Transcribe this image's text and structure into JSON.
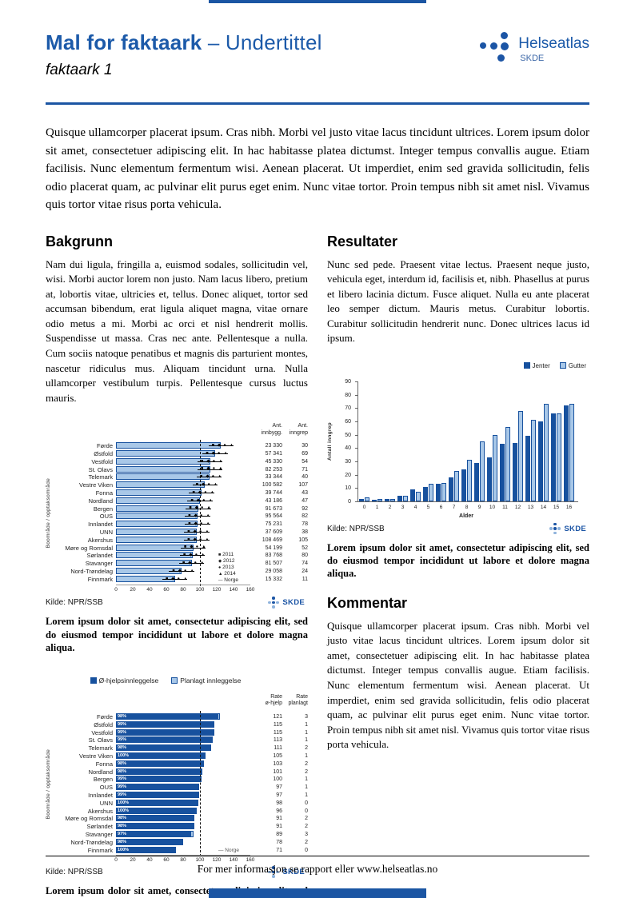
{
  "accent_color": "#1B55A3",
  "bar_dark_color": "#17519E",
  "bar_light_color": "#A9C8E8",
  "header": {
    "title_bold": "Mal for faktaark",
    "title_rest": "– Undertittel",
    "subtitle": "faktaark 1",
    "logo_name": "Helseatlas",
    "logo_sub": "SKDE"
  },
  "logos": {
    "chart_logo_text": "SKDE"
  },
  "intro": "Quisque ullamcorper placerat ipsum. Cras nibh. Morbi vel justo vitae lacus tincidunt ultrices. Lorem ipsum dolor sit amet, consectetuer adipiscing elit. In hac habitasse platea dictumst. Integer tempus convallis augue. Etiam facilisis. Nunc elementum fermentum wisi. Aenean placerat. Ut imperdiet, enim sed gravida sollicitudin, felis odio placerat quam, ac pulvinar elit purus eget enim. Nunc vitae tortor. Proin tempus nibh sit amet nisl. Vivamus quis tortor vitae risus porta vehicula.",
  "sections": {
    "bakgrunn": {
      "heading": "Bakgrunn",
      "body": "Nam dui ligula, fringilla a, euismod sodales, sollicitudin vel, wisi. Morbi auctor lorem non justo. Nam lacus libero, pretium at, lobortis vitae, ultricies et, tellus. Donec aliquet, tortor sed accumsan bibendum, erat ligula aliquet magna, vitae ornare odio metus a mi. Morbi ac orci et nisl hendrerit mollis. Suspendisse ut massa. Cras nec ante. Pellentesque a nulla. Cum sociis natoque penatibus et magnis dis parturient montes, nascetur ridiculus mus. Aliquam tincidunt urna. Nulla ullamcorper vestibulum turpis. Pellentesque cursus luctus mauris."
    },
    "resultater": {
      "heading": "Resultater",
      "body": "Nunc sed pede. Praesent vitae lectus. Praesent neque justo, vehicula eget, interdum id, facilisis et, nibh. Phasellus at purus et libero lacinia dictum. Fusce aliquet. Nulla eu ante placerat leo semper dictum. Mauris metus. Curabitur lobortis. Curabitur sollicitudin hendrerit nunc. Donec ultrices lacus id ipsum."
    },
    "kommentar": {
      "heading": "Kommentar",
      "body": "Quisque ullamcorper placerat ipsum. Cras nibh. Morbi vel justo vitae lacus tincidunt ultrices. Lorem ipsum dolor sit amet, consectetuer adipiscing elit. In hac habitasse platea dictumst. Integer tempus convallis augue. Etiam facilisis. Nunc elementum fermentum wisi. Aenean placerat. Ut imperdiet, enim sed gravida sollicitudin, felis odio placerat quam, ac pulvinar elit purus eget enim. Nunc vitae tortor. Proin tempus nibh sit amet nisl. Vivamus quis tortor vitae risus porta vehicula."
    }
  },
  "captions": {
    "chart1": "Lorem ipsum dolor sit amet, consectetur adipiscing elit, sed do eiusmod tempor incididunt ut labore et dolore magna aliqua.",
    "chart2": "Lorem ipsum dolor sit amet, consectetur adipiscing elit, sed do eiusmod tempor incididunt ut labore et dolore magna aliqua.",
    "chart3": "Lorem ipsum dolor sit amet, consectetur adipiscing elit, sed do eiusmod tempor incididunt ut labore et dolore magna aliqua."
  },
  "footer": {
    "text": "For mer informasjon se rapport eller www.helseatlas.no"
  },
  "chart_data": [
    {
      "type": "bar",
      "orientation": "horizontal",
      "ylabel": "Boområde / opptaksområde",
      "categories": [
        "Førde",
        "Østfold",
        "Vestfold",
        "St. Olavs",
        "Telemark",
        "Vestre Viken",
        "Fonna",
        "Nordland",
        "Bergen",
        "OUS",
        "Innlandet",
        "UNN",
        "Akershus",
        "Møre og Romsdal",
        "Sørlandet",
        "Stavanger",
        "Nord-Trøndelag",
        "Finnmark"
      ],
      "values": [
        125,
        118,
        112,
        112,
        111,
        106,
        102,
        100,
        98,
        97,
        97,
        96,
        96,
        92,
        91,
        90,
        78,
        70
      ],
      "xlim": [
        0,
        160
      ],
      "xticks": [
        0,
        20,
        40,
        60,
        80,
        100,
        120,
        140,
        160
      ],
      "reference_line": {
        "label": "Norge",
        "value": 100
      },
      "columns": [
        {
          "header": "Ant. innbygg.",
          "values": [
            "23 330",
            "57 341",
            "45 330",
            "82 253",
            "33 344",
            "100 582",
            "39 744",
            "43 186",
            "91 673",
            "95 564",
            "75 231",
            "37 609",
            "108 469",
            "54 199",
            "83 768",
            "81 507",
            "29 058",
            "15 332"
          ]
        },
        {
          "header": "Ant. inngrep",
          "values": [
            "30",
            "69",
            "54",
            "71",
            "40",
            "107",
            "43",
            "47",
            "92",
            "82",
            "78",
            "38",
            "105",
            "52",
            "80",
            "74",
            "24",
            "11"
          ]
        }
      ],
      "legend": [
        {
          "label": "2011",
          "marker": "square"
        },
        {
          "label": "2012",
          "marker": "diamond"
        },
        {
          "label": "2013",
          "marker": "circle"
        },
        {
          "label": "2014",
          "marker": "triangle"
        },
        {
          "label": "Norge",
          "marker": "dash"
        }
      ],
      "source": "Kilde: NPR/SSB"
    },
    {
      "type": "bar",
      "orientation": "horizontal",
      "ylabel": "Boområde / opptaksområde",
      "categories": [
        "Førde",
        "Østfold",
        "Vestfold",
        "St. Olavs",
        "Telemark",
        "Vestre Viken",
        "Fonna",
        "Nordland",
        "Bergen",
        "OUS",
        "Innlandet",
        "UNN",
        "Akershus",
        "Møre og Romsdal",
        "Sørlandet",
        "Stavanger",
        "Nord-Trøndelag",
        "Finnmark"
      ],
      "series": [
        {
          "name": "Ø-hjelpsinnleggelse",
          "values": [
            121,
            115,
            115,
            113,
            111,
            105,
            103,
            101,
            100,
            97,
            97,
            98,
            96,
            91,
            91,
            89,
            78,
            71
          ]
        },
        {
          "name": "Planlagt innleggelse",
          "values": [
            3,
            1,
            1,
            1,
            2,
            1,
            2,
            2,
            1,
            1,
            1,
            0,
            0,
            2,
            2,
            3,
            2,
            0
          ]
        }
      ],
      "bar_labels": [
        "98%",
        "99%",
        "99%",
        "99%",
        "98%",
        "100%",
        "98%",
        "98%",
        "99%",
        "99%",
        "99%",
        "100%",
        "100%",
        "98%",
        "98%",
        "97%",
        "98%",
        "100%"
      ],
      "xlim": [
        0,
        160
      ],
      "xticks": [
        0,
        20,
        40,
        60,
        80,
        100,
        120,
        140,
        160
      ],
      "reference_line": {
        "label": "Norge",
        "value": 100
      },
      "columns": [
        {
          "header": "Rate ø-hjelp",
          "values": [
            "121",
            "115",
            "115",
            "113",
            "111",
            "105",
            "103",
            "101",
            "100",
            "97",
            "97",
            "98",
            "96",
            "91",
            "91",
            "89",
            "78",
            "71"
          ]
        },
        {
          "header": "Rate planlagt",
          "values": [
            "3",
            "1",
            "1",
            "1",
            "2",
            "1",
            "2",
            "2",
            "1",
            "1",
            "1",
            "0",
            "0",
            "2",
            "2",
            "3",
            "2",
            "0"
          ]
        }
      ],
      "source": "Kilde: NPR/SSB"
    },
    {
      "type": "bar",
      "orientation": "vertical",
      "categories": [
        "0",
        "1",
        "2",
        "3",
        "4",
        "5",
        "6",
        "7",
        "8",
        "9",
        "10",
        "11",
        "12",
        "13",
        "14",
        "15",
        "16"
      ],
      "series": [
        {
          "name": "Jenter",
          "values": [
            2,
            1,
            2,
            4,
            9,
            11,
            13,
            18,
            24,
            29,
            33,
            43,
            44,
            49,
            60,
            66,
            72
          ]
        },
        {
          "name": "Gutter",
          "values": [
            3,
            2,
            2,
            4,
            7,
            13,
            14,
            23,
            31,
            45,
            50,
            56,
            68,
            61,
            73,
            66,
            73
          ]
        }
      ],
      "xlabel": "Alder",
      "ylabel": "Antall inngrep",
      "ylim": [
        0,
        90
      ],
      "yticks": [
        0,
        10,
        20,
        30,
        40,
        50,
        60,
        70,
        80,
        90
      ],
      "legend_position": "top-right",
      "source": "Kilde: NPR/SSB"
    }
  ]
}
